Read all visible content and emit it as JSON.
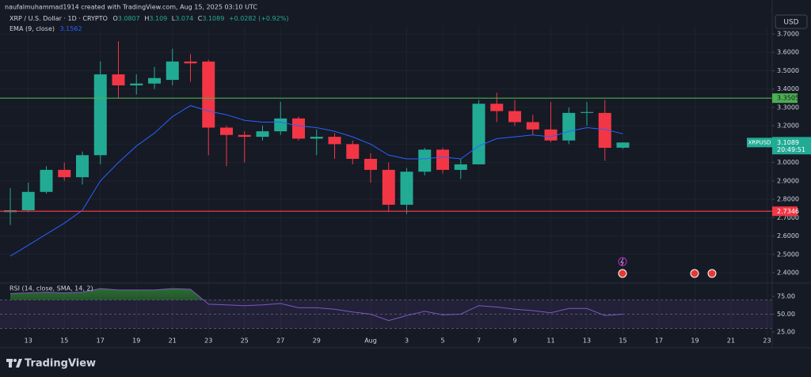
{
  "header": {
    "credit": "naufalmuhammad1914 created with TradingView.com, Aug 15, 2025 03:10 UTC",
    "symbol": "XRP / U.S. Dollar · 1D · CRYPTO",
    "ohlc_prefixes": [
      "O",
      "H",
      "L",
      "C"
    ],
    "change": "+0.0282 (+0.92%)",
    "currency": "USD",
    "ticker": "XRPUSD",
    "countdown": "20:49:51"
  },
  "chart_data": [
    {
      "type": "candlestick",
      "categories": [
        null,
        "13",
        null,
        "15",
        null,
        "17",
        null,
        "19",
        null,
        "21",
        null,
        "23",
        null,
        "25",
        null,
        "27",
        null,
        "29",
        null,
        null,
        "Aug",
        null,
        "3",
        null,
        "5",
        null,
        "7",
        null,
        "9",
        null,
        "11",
        null,
        "13",
        null,
        "15",
        null,
        "17",
        null,
        "19",
        null,
        "21",
        null,
        "23"
      ],
      "open": [
        2.73,
        2.74,
        2.84,
        2.96,
        2.92,
        3.04,
        3.48,
        3.42,
        3.43,
        3.45,
        3.55,
        3.55,
        3.19,
        3.15,
        3.14,
        3.17,
        3.24,
        3.13,
        3.14,
        3.1,
        3.02,
        2.96,
        2.77,
        2.95,
        3.07,
        2.96,
        2.99,
        3.32,
        3.28,
        3.22,
        3.18,
        3.12,
        3.27,
        3.27,
        3.0807,
        null,
        null,
        null,
        null,
        null,
        null,
        null,
        null
      ],
      "high": [
        2.86,
        2.89,
        2.98,
        3.0,
        3.06,
        3.55,
        3.66,
        3.48,
        3.52,
        3.62,
        3.59,
        3.56,
        3.2,
        3.17,
        3.2,
        3.33,
        3.25,
        3.18,
        3.16,
        3.12,
        3.05,
        3.0,
        2.97,
        3.08,
        3.08,
        3.02,
        3.34,
        3.38,
        3.34,
        3.26,
        3.33,
        3.3,
        3.33,
        3.34,
        3.109,
        null,
        null,
        null,
        null,
        null,
        null,
        null,
        null
      ],
      "low": [
        2.66,
        2.73,
        2.83,
        2.9,
        2.88,
        2.99,
        3.35,
        3.37,
        3.4,
        3.42,
        3.44,
        3.04,
        2.98,
        3.0,
        3.12,
        3.15,
        3.12,
        3.04,
        3.02,
        2.99,
        2.89,
        2.73,
        2.72,
        2.93,
        2.94,
        2.91,
        2.99,
        3.22,
        3.2,
        3.15,
        3.11,
        3.1,
        3.2,
        3.01,
        3.074,
        null,
        null,
        null,
        null,
        null,
        null,
        null,
        null
      ],
      "close": [
        2.74,
        2.84,
        2.96,
        2.92,
        3.04,
        3.48,
        3.42,
        3.43,
        3.46,
        3.55,
        3.54,
        3.19,
        3.15,
        3.14,
        3.17,
        3.24,
        3.13,
        3.14,
        3.1,
        3.02,
        2.96,
        2.77,
        2.95,
        3.07,
        2.96,
        2.99,
        3.32,
        3.28,
        3.22,
        3.18,
        3.12,
        3.27,
        3.275,
        3.08,
        3.1089,
        null,
        null,
        null,
        null,
        null,
        null,
        null,
        null
      ],
      "up_color": "#22ab94",
      "down_color": "#f23645",
      "ylim": [
        2.357,
        3.743
      ],
      "yticks": [
        {
          "value": 3.7,
          "label": "3.7000"
        },
        {
          "value": 3.6,
          "label": "3.6000"
        },
        {
          "value": 3.5,
          "label": "3.5000"
        },
        {
          "value": 3.4,
          "label": "3.4000"
        },
        {
          "value": 3.3,
          "label": "3.3000"
        },
        {
          "value": 3.2,
          "label": "3.2000"
        },
        {
          "value": 3.1,
          "label": "3.1000"
        },
        {
          "value": 3.0,
          "label": "3.0000"
        },
        {
          "value": 2.9,
          "label": "2.9000"
        },
        {
          "value": 2.8,
          "label": "2.8000"
        },
        {
          "value": 2.7,
          "label": "2.7000"
        },
        {
          "value": 2.6,
          "label": "2.6000"
        },
        {
          "value": 2.5,
          "label": "2.5000"
        },
        {
          "value": 2.4,
          "label": "2.4000"
        }
      ],
      "grid": true,
      "lines": [
        {
          "value": 3.3505,
          "color": "#4caf50"
        },
        {
          "value": 2.7346,
          "color": "#f23645"
        }
      ],
      "overlay": {
        "name": "EMA (9, close)",
        "color": "#2962ff",
        "values": [
          2.49,
          2.55,
          2.61,
          2.67,
          2.74,
          2.9,
          3.0,
          3.09,
          3.16,
          3.25,
          3.31,
          3.28,
          3.26,
          3.23,
          3.22,
          3.22,
          3.2,
          3.19,
          3.17,
          3.14,
          3.1,
          3.04,
          3.02,
          3.02,
          3.03,
          3.02,
          3.09,
          3.13,
          3.14,
          3.15,
          3.14,
          3.17,
          3.19,
          3.18,
          3.1562,
          null,
          null,
          null,
          null,
          null,
          null,
          null,
          null
        ]
      }
    },
    {
      "type": "line",
      "name": "RSI (14, close, SMA, 14, 2)",
      "color": "#7e57c2",
      "values": [
        79,
        80,
        81,
        80,
        81,
        86,
        84,
        84,
        84,
        86,
        85,
        64,
        63,
        62,
        63,
        65,
        59,
        59,
        57,
        53,
        50,
        41,
        48,
        54,
        49,
        50,
        62,
        60,
        57,
        55,
        52,
        58,
        58,
        48,
        50,
        null,
        null,
        null,
        null,
        null,
        null,
        null,
        null
      ],
      "ylim": [
        19.4,
        86.1
      ],
      "yticks": [
        {
          "value": 75,
          "label": "75.00"
        },
        {
          "value": 50,
          "label": "50.00"
        },
        {
          "value": 25,
          "label": "25.00"
        }
      ],
      "band": [
        30,
        70
      ]
    }
  ],
  "footer": {
    "logo": "TradingView"
  }
}
